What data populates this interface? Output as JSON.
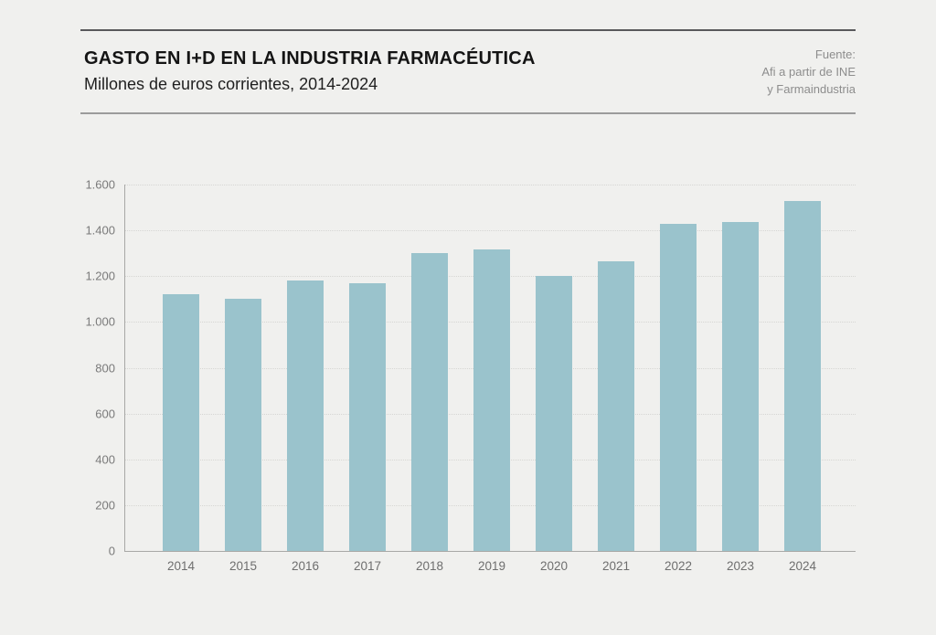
{
  "header": {
    "title": "GASTO EN I+D EN LA INDUSTRIA FARMACÉUTICA",
    "subtitle": "Millones de euros corrientes, 2014-2024",
    "source_lines": [
      "Fuente:",
      "Afi a partir de INE",
      "y Farmaindustria"
    ]
  },
  "chart_data": {
    "type": "bar",
    "title": "GASTO EN I+D EN LA INDUSTRIA FARMACÉUTICA",
    "subtitle": "Millones de euros corrientes, 2014-2024",
    "source": "Fuente: Afi a partir de INE y Farmaindustria",
    "categories": [
      "2014",
      "2015",
      "2016",
      "2017",
      "2018",
      "2019",
      "2020",
      "2021",
      "2022",
      "2023",
      "2024"
    ],
    "values": [
      1120,
      1100,
      1180,
      1170,
      1300,
      1315,
      1200,
      1265,
      1430,
      1435,
      1530
    ],
    "xlabel": "",
    "ylabel": "",
    "ylim": [
      0,
      1600
    ],
    "ytick_step": 200,
    "ytick_labels": [
      "0",
      "200",
      "400",
      "600",
      "800",
      "1.000",
      "1.200",
      "1.400",
      "1.600"
    ],
    "grid": "horizontal-dotted",
    "legend": "none",
    "bar_color": "#9ac3cc"
  },
  "colors": {
    "background": "#f0f0ee",
    "bar": "#9ac3cc",
    "axis": "#a8a8a6",
    "gridline": "#d6d6d3",
    "title_text": "#141414",
    "source_text": "#8d8d8d",
    "tick_text": "#7a7a7a",
    "rule_top": "#59595b",
    "rule_bottom": "#9b9b9b"
  }
}
